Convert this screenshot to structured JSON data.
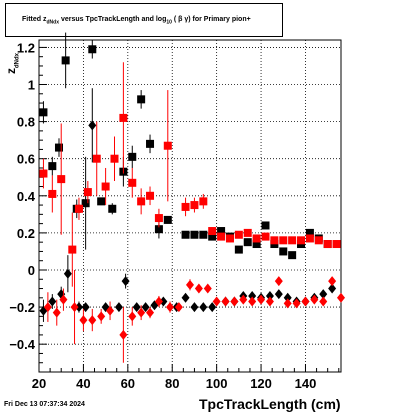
{
  "title_parts": {
    "pre": "Fitted  z",
    "sub": "dNdx",
    "mid": "  versus TpcTrackLength and log",
    "sub2": "10",
    "post": " ( β γ) for Primary pion+"
  },
  "timestamp": "Fri Dec 13 07:37:34 2024",
  "ylabel_parts": {
    "main": "z",
    "sub": "dNdx"
  },
  "colors": {
    "black": "#000000",
    "red": "#ff0000",
    "grid": "#000000"
  },
  "chart_data": {
    "type": "scatter",
    "title": "",
    "xlabel": "TpcTrackLength (cm)",
    "ylabel": "",
    "xlim": [
      20,
      156
    ],
    "ylim": [
      -0.55,
      1.24
    ],
    "xticks": [
      20,
      40,
      60,
      80,
      100,
      120,
      140
    ],
    "yticks": [
      -0.4,
      -0.2,
      0,
      0.2,
      0.4,
      0.6,
      0.8,
      1.0,
      1.2
    ],
    "ytick_labels": [
      "−0.4",
      "−0.2",
      "0",
      "0.2",
      "0.4",
      "0.6",
      "0.8",
      "1",
      "1.2"
    ],
    "grid": true,
    "series": [
      {
        "marker": "square",
        "color": "black",
        "points": [
          [
            22,
            0.85,
            0.06
          ],
          [
            26,
            0.56,
            0.05
          ],
          [
            29,
            0.66,
            0.05
          ],
          [
            32,
            1.13,
            0.15
          ],
          [
            37,
            0.33,
            0.05
          ],
          [
            41,
            0.36,
            0.25
          ],
          [
            44,
            1.19,
            0.05
          ],
          [
            48,
            0.37,
            0.02
          ],
          [
            53,
            0.33,
            0.03
          ],
          [
            58,
            0.53,
            0.08
          ],
          [
            62,
            0.61,
            0.06
          ],
          [
            66,
            0.92,
            0.05
          ],
          [
            70,
            0.68,
            0.05
          ],
          [
            74,
            0.22,
            0.05
          ],
          [
            78,
            0.27,
            0.02
          ],
          [
            86,
            0.19,
            0.02
          ],
          [
            90,
            0.19,
            0.01
          ],
          [
            94,
            0.19,
            0.01
          ],
          [
            98,
            0.18,
            0.01
          ],
          [
            102,
            0.21,
            0.01
          ],
          [
            106,
            0.18,
            0.01
          ],
          [
            110,
            0.11,
            0.01
          ],
          [
            114,
            0.15,
            0.01
          ],
          [
            118,
            0.14,
            0.01
          ],
          [
            122,
            0.24,
            0.01
          ],
          [
            126,
            0.14,
            0.01
          ],
          [
            130,
            0.1,
            0.01
          ],
          [
            134,
            0.08,
            0.01
          ],
          [
            138,
            0.14,
            0.01
          ],
          [
            142,
            0.2,
            0.01
          ],
          [
            146,
            0.17,
            0.02
          ],
          [
            150,
            0.14,
            0.01
          ]
        ]
      },
      {
        "marker": "square",
        "color": "red",
        "points": [
          [
            22,
            0.52,
            0.08
          ],
          [
            26,
            0.41,
            0.1
          ],
          [
            30,
            0.49,
            0.3
          ],
          [
            35,
            0.11,
            0.2
          ],
          [
            38,
            0.33,
            0.06
          ],
          [
            42,
            0.42,
            0.06
          ],
          [
            46,
            0.6,
            0.2
          ],
          [
            50,
            0.45,
            0.1
          ],
          [
            54,
            0.6,
            0.12
          ],
          [
            58,
            0.82,
            0.3
          ],
          [
            62,
            0.47,
            0.08
          ],
          [
            66,
            0.37,
            0.07
          ],
          [
            70,
            0.4,
            0.05
          ],
          [
            74,
            0.28,
            0.05
          ],
          [
            78,
            0.67,
            0.3
          ],
          [
            86,
            0.34,
            0.05
          ],
          [
            90,
            0.35,
            0.04
          ],
          [
            94,
            0.37,
            0.04
          ],
          [
            98,
            0.21,
            0.02
          ],
          [
            102,
            0.18,
            0.02
          ],
          [
            106,
            0.17,
            0.02
          ],
          [
            110,
            0.19,
            0.01
          ],
          [
            114,
            0.2,
            0.01
          ],
          [
            118,
            0.17,
            0.01
          ],
          [
            122,
            0.18,
            0.01
          ],
          [
            126,
            0.16,
            0.01
          ],
          [
            130,
            0.16,
            0.01
          ],
          [
            134,
            0.16,
            0.01
          ],
          [
            138,
            0.16,
            0.01
          ],
          [
            142,
            0.17,
            0.01
          ],
          [
            146,
            0.16,
            0.01
          ],
          [
            150,
            0.14,
            0.01
          ],
          [
            154,
            0.14,
            0.01
          ]
        ]
      },
      {
        "marker": "diamond",
        "color": "black",
        "points": [
          [
            22,
            -0.22,
            0.06
          ],
          [
            26,
            -0.17,
            0.04
          ],
          [
            30,
            -0.13,
            0.04
          ],
          [
            33,
            -0.02,
            0.1
          ],
          [
            38,
            -0.2,
            0.03
          ],
          [
            41,
            -0.2,
            0.02
          ],
          [
            44,
            0.78,
            0.2
          ],
          [
            50,
            -0.2,
            0.02
          ],
          [
            56,
            -0.2,
            0.02
          ],
          [
            59,
            -0.06,
            0.04
          ],
          [
            64,
            -0.2,
            0.02
          ],
          [
            68,
            -0.2,
            0.02
          ],
          [
            72,
            -0.19,
            0.02
          ],
          [
            76,
            -0.17,
            0.02
          ],
          [
            82,
            -0.2,
            0.02
          ],
          [
            86,
            -0.15,
            0.02
          ],
          [
            90,
            -0.2,
            0.01
          ],
          [
            94,
            -0.2,
            0.01
          ],
          [
            98,
            -0.2,
            0.01
          ],
          [
            104,
            -0.17,
            0.01
          ],
          [
            108,
            -0.17,
            0.01
          ],
          [
            112,
            -0.14,
            0.01
          ],
          [
            116,
            -0.14,
            0.01
          ],
          [
            120,
            -0.15,
            0.01
          ],
          [
            124,
            -0.14,
            0.01
          ],
          [
            128,
            -0.13,
            0.01
          ],
          [
            132,
            -0.15,
            0.01
          ],
          [
            136,
            -0.17,
            0.01
          ],
          [
            140,
            -0.17,
            0.01
          ],
          [
            144,
            -0.15,
            0.01
          ],
          [
            148,
            -0.13,
            0.01
          ],
          [
            152,
            -0.1,
            0.01
          ]
        ]
      },
      {
        "marker": "diamond",
        "color": "red",
        "points": [
          [
            24,
            -0.2,
            0.08
          ],
          [
            28,
            -0.23,
            0.07
          ],
          [
            31,
            -0.16,
            0.06
          ],
          [
            36,
            -0.2,
            0.2
          ],
          [
            40,
            -0.27,
            0.06
          ],
          [
            44,
            -0.27,
            0.06
          ],
          [
            48,
            -0.25,
            0.04
          ],
          [
            52,
            -0.22,
            0.05
          ],
          [
            58,
            -0.35,
            0.15
          ],
          [
            62,
            -0.25,
            0.05
          ],
          [
            66,
            -0.23,
            0.04
          ],
          [
            70,
            -0.23,
            0.03
          ],
          [
            74,
            -0.17,
            0.03
          ],
          [
            79,
            -0.2,
            0.03
          ],
          [
            83,
            -0.2,
            0.02
          ],
          [
            88,
            -0.08,
            0.03
          ],
          [
            92,
            -0.1,
            0.02
          ],
          [
            96,
            -0.1,
            0.02
          ],
          [
            100,
            -0.17,
            0.01
          ],
          [
            104,
            -0.17,
            0.01
          ],
          [
            108,
            -0.17,
            0.01
          ],
          [
            112,
            -0.16,
            0.01
          ],
          [
            116,
            -0.17,
            0.01
          ],
          [
            120,
            -0.16,
            0.01
          ],
          [
            124,
            -0.17,
            0.01
          ],
          [
            128,
            -0.06,
            0.02
          ],
          [
            132,
            -0.18,
            0.01
          ],
          [
            136,
            -0.18,
            0.01
          ],
          [
            140,
            -0.17,
            0.01
          ],
          [
            144,
            -0.16,
            0.01
          ],
          [
            148,
            -0.17,
            0.01
          ],
          [
            152,
            -0.06,
            0.02
          ],
          [
            156,
            -0.15,
            0.01
          ]
        ]
      }
    ]
  }
}
